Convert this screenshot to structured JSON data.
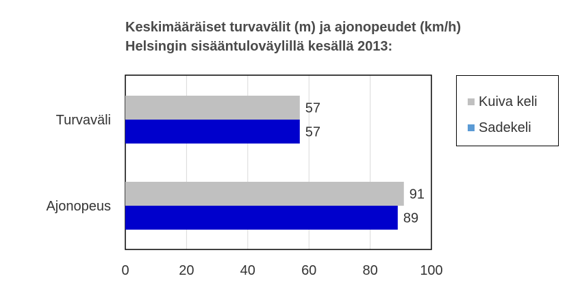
{
  "title_line1": "Keskimääräiset turvavälit (m) ja ajonopeudet (km/h)",
  "title_line2": "Helsingin sisääntuloväylillä kesällä 2013:",
  "colors": {
    "dry": "#c0c0c0",
    "rain_bar": "#0000cc",
    "rain_legend": "#5b9bd5",
    "grid": "#d9d9d9",
    "text": "#333333"
  },
  "legend": [
    {
      "label": "Kuiva keli",
      "color_key": "dry"
    },
    {
      "label": "Sadekeli",
      "color_key": "rain_legend"
    }
  ],
  "chart_data": {
    "type": "bar",
    "orientation": "horizontal",
    "categories": [
      "Turvaväli",
      "Ajonopeus"
    ],
    "series": [
      {
        "name": "Kuiva keli",
        "values": [
          57,
          91
        ]
      },
      {
        "name": "Sadekeli",
        "values": [
          57,
          89
        ]
      }
    ],
    "xlim": [
      0,
      100
    ],
    "xticks": [
      0,
      20,
      40,
      60,
      80,
      100
    ],
    "grid": "vertical",
    "legend_position": "right",
    "data_labels": true
  }
}
